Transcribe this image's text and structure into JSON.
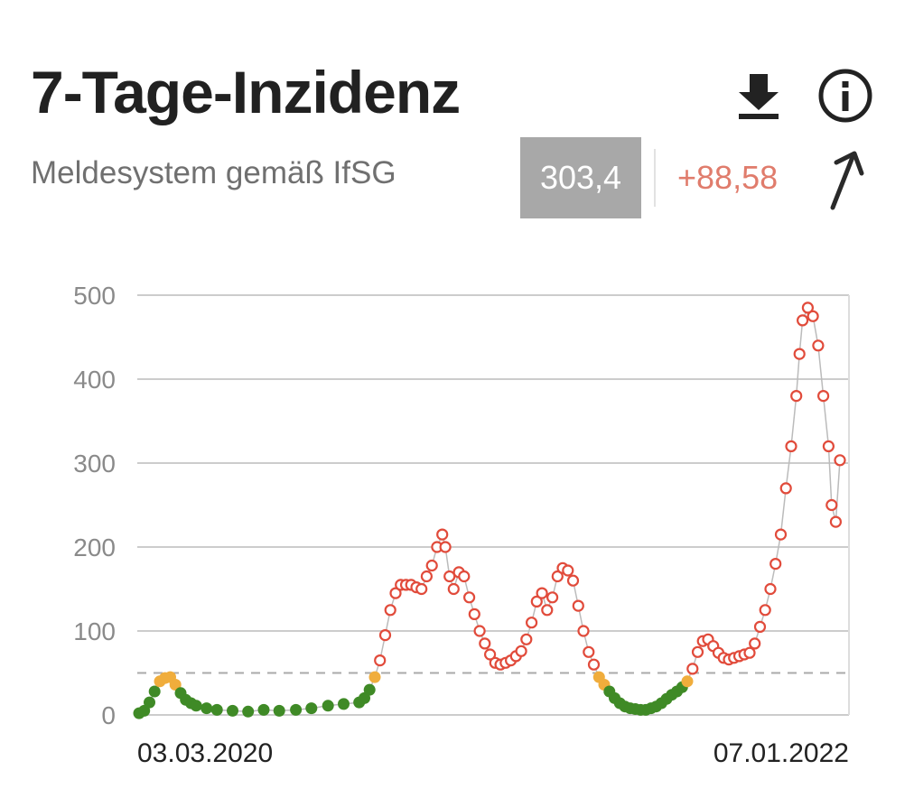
{
  "header": {
    "title": "7-Tage-Inzidenz",
    "subtitle": "Meldesystem gemäß IfSG",
    "current_value": "303,4",
    "change_value": "+88,58",
    "icons": [
      "download-icon",
      "info-icon",
      "trend-up-arrow-icon"
    ]
  },
  "colors": {
    "high": "#e14b3b",
    "medium": "#f0ad3c",
    "low": "#3f8a26",
    "threshold_line": "#aaaaaa",
    "value_box": "#a8a8a8",
    "change_text": "#e07c6c"
  },
  "chart_data": {
    "type": "scatter",
    "title": "7-Tage-Inzidenz",
    "x_start_label": "03.03.2020",
    "x_end_label": "07.01.2022",
    "ylim": [
      0,
      500
    ],
    "yticks": [
      0,
      100,
      200,
      300,
      400,
      500
    ],
    "grid": true,
    "threshold": 50,
    "color_rule": "green below 35, orange 35-50, red above 50",
    "series": [
      {
        "x": [
          "2020-03-03",
          "2020-03-08",
          "2020-03-13",
          "2020-03-18",
          "2020-03-23",
          "2020-03-28",
          "2020-04-02",
          "2020-04-07",
          "2020-04-12",
          "2020-04-17",
          "2020-04-22",
          "2020-04-27",
          "2020-05-07",
          "2020-05-17",
          "2020-06-01",
          "2020-06-16",
          "2020-07-01",
          "2020-07-16",
          "2020-08-01",
          "2020-08-16",
          "2020-09-01",
          "2020-09-16",
          "2020-10-01",
          "2020-10-06",
          "2020-10-11",
          "2020-10-16",
          "2020-10-21",
          "2020-10-26",
          "2020-10-31",
          "2020-11-05",
          "2020-11-10",
          "2020-11-15",
          "2020-11-20",
          "2020-11-25",
          "2020-11-30",
          "2020-12-05",
          "2020-12-10",
          "2020-12-15",
          "2020-12-20",
          "2020-12-23",
          "2020-12-27",
          "2020-12-31",
          "2021-01-05",
          "2021-01-10",
          "2021-01-15",
          "2021-01-20",
          "2021-01-25",
          "2021-01-30",
          "2021-02-04",
          "2021-02-09",
          "2021-02-14",
          "2021-02-19",
          "2021-02-24",
          "2021-03-01",
          "2021-03-06",
          "2021-03-11",
          "2021-03-16",
          "2021-03-21",
          "2021-03-26",
          "2021-03-31",
          "2021-04-05",
          "2021-04-10",
          "2021-04-15",
          "2021-04-20",
          "2021-04-25",
          "2021-04-30",
          "2021-05-05",
          "2021-05-10",
          "2021-05-15",
          "2021-05-20",
          "2021-05-25",
          "2021-05-30",
          "2021-06-04",
          "2021-06-09",
          "2021-06-14",
          "2021-06-19",
          "2021-06-24",
          "2021-06-29",
          "2021-07-04",
          "2021-07-09",
          "2021-07-14",
          "2021-07-19",
          "2021-07-24",
          "2021-07-29",
          "2021-08-03",
          "2021-08-08",
          "2021-08-13",
          "2021-08-18",
          "2021-08-23",
          "2021-08-28",
          "2021-09-02",
          "2021-09-07",
          "2021-09-12",
          "2021-09-17",
          "2021-09-22",
          "2021-09-27",
          "2021-10-02",
          "2021-10-07",
          "2021-10-12",
          "2021-10-17",
          "2021-10-22",
          "2021-10-27",
          "2021-11-01",
          "2021-11-06",
          "2021-11-11",
          "2021-11-16",
          "2021-11-21",
          "2021-11-26",
          "2021-11-29",
          "2021-12-02",
          "2021-12-07",
          "2021-12-12",
          "2021-12-17",
          "2021-12-22",
          "2021-12-27",
          "2021-12-30",
          "2022-01-03",
          "2022-01-07"
        ],
        "y": [
          2,
          5,
          15,
          28,
          40,
          44,
          45,
          36,
          26,
          18,
          14,
          11,
          8,
          6,
          5,
          4,
          6,
          5,
          6,
          8,
          11,
          13,
          15,
          20,
          30,
          45,
          65,
          95,
          125,
          145,
          155,
          155,
          155,
          152,
          150,
          165,
          178,
          200,
          215,
          200,
          165,
          150,
          170,
          165,
          140,
          120,
          100,
          85,
          72,
          62,
          60,
          62,
          65,
          70,
          76,
          90,
          110,
          135,
          145,
          125,
          140,
          165,
          175,
          172,
          160,
          130,
          100,
          75,
          60,
          45,
          36,
          28,
          20,
          14,
          10,
          8,
          7,
          6,
          6,
          8,
          10,
          14,
          19,
          24,
          28,
          33,
          40,
          55,
          75,
          88,
          90,
          82,
          74,
          68,
          66,
          68,
          70,
          72,
          74,
          85,
          105,
          125,
          150,
          180,
          215,
          270,
          320,
          380,
          430,
          470,
          485,
          475,
          440,
          380,
          320,
          250,
          230,
          303.4
        ]
      }
    ]
  }
}
